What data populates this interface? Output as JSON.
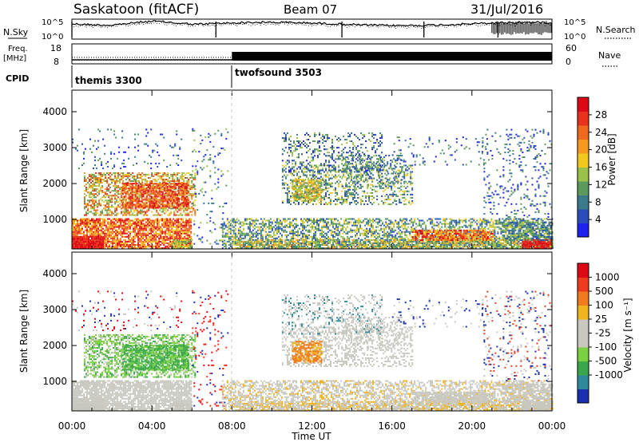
{
  "header": {
    "station": "Saskatoon (fitACF)",
    "beam": "Beam 07",
    "date": "31/Jul/2016"
  },
  "top_panels": {
    "nsky_label": "N.Sky",
    "nsearch_label": "N.Search",
    "nsky_ticks": [
      "10^5",
      "10^0"
    ],
    "nsearch_ticks": [
      "10^5",
      "10^0"
    ],
    "freq_label_1": "Freq.",
    "freq_label_2": "[MHz]",
    "freq_ticks": [
      "18",
      "8"
    ],
    "nave_label": "Nave",
    "nave_ticks": [
      "60",
      "0"
    ],
    "cpid_label": "CPID",
    "cpid_segments": [
      {
        "name": "themis 3300",
        "start_h": 0,
        "end_h": 8
      },
      {
        "name": "twofsound 3503",
        "start_h": 8,
        "end_h": 24
      }
    ]
  },
  "chart_data": [
    {
      "type": "heatmap",
      "title": "",
      "xlabel": "",
      "ylabel": "Slant Range [km]",
      "x_range_hours": [
        0,
        24
      ],
      "ylim": [
        180,
        4600
      ],
      "y_ticks": [
        1000,
        2000,
        3000,
        4000
      ],
      "colorbar": {
        "label": "Power [dB]",
        "ticks": [
          "4",
          "8",
          "12",
          "16",
          "20",
          "24",
          "28"
        ],
        "colors": [
          "#1e22ee",
          "#2a4dbb",
          "#3a7a8a",
          "#5a9a5a",
          "#9ac24a",
          "#f0c81e",
          "#f59a1e",
          "#ef6a1e",
          "#e8321e",
          "#dc0a14"
        ]
      }
    },
    {
      "type": "heatmap",
      "title": "",
      "xlabel": "Time UT",
      "ylabel": "Slant Range [km]",
      "x_range_hours": [
        0,
        24
      ],
      "x_tick_labels": [
        "00:00",
        "04:00",
        "08:00",
        "12:00",
        "16:00",
        "20:00",
        "00:00"
      ],
      "ylim": [
        180,
        4600
      ],
      "y_ticks": [
        1000,
        2000,
        3000,
        4000
      ],
      "colorbar": {
        "label": "Velocity [m s⁻¹]",
        "ticks": [
          "1000",
          "500",
          "100",
          "25",
          "-25",
          "-100",
          "-500",
          "-1000"
        ],
        "colors": [
          "#1a2fb0",
          "#2e8a9a",
          "#3aa84a",
          "#7ad040",
          "#c8c8c0",
          "#c8c8c0",
          "#f0b41e",
          "#f07a1e",
          "#ee3a1e",
          "#dc0a14"
        ]
      }
    }
  ]
}
